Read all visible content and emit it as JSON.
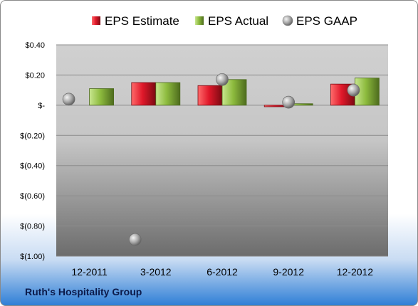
{
  "chart_data": {
    "type": "bar",
    "categories": [
      "12-2011",
      "3-2012",
      "6-2012",
      "9-2012",
      "12-2012"
    ],
    "series": [
      {
        "name": "EPS Estimate",
        "kind": "bar",
        "color": "#e0182a",
        "values": [
          null,
          0.15,
          0.13,
          -0.01,
          0.14
        ]
      },
      {
        "name": "EPS Actual",
        "kind": "bar",
        "color": "#8dbb3e",
        "values": [
          0.11,
          0.15,
          0.17,
          0.01,
          0.18
        ]
      },
      {
        "name": "EPS GAAP",
        "kind": "marker",
        "color": "#a9a9a9",
        "values": [
          0.04,
          -0.89,
          0.17,
          0.02,
          0.1
        ]
      }
    ],
    "ylim": [
      -1.0,
      0.4
    ],
    "yticks": [
      0.4,
      0.2,
      0.0,
      -0.2,
      -0.4,
      -0.6,
      -0.8,
      -1.0
    ],
    "ytick_labels": [
      "$0.40",
      "$0.20",
      "$-",
      "$(0.20)",
      "$(0.40)",
      "$(0.60)",
      "$(0.80)",
      "$(1.00)"
    ],
    "grid": true,
    "legend_position": "top-center",
    "title": "",
    "xlabel": "",
    "ylabel": ""
  },
  "footer": {
    "company": "Ruth's Hospitality Group"
  }
}
